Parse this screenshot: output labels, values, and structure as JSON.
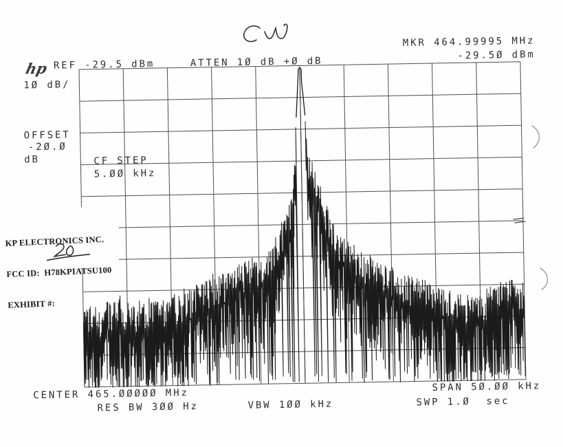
{
  "annotations": {
    "handwritten_title": "CW",
    "stamp": {
      "line1": "KP ELECTRONICS INC.",
      "line2": "FCC ID:  H78KPIATSU100",
      "line3_label": "EXHIBIT #:",
      "exhibit_value_handwritten": "20"
    }
  },
  "analyzer": {
    "logo": "hp",
    "ref": "REF -29.5 dBm",
    "atten": "ATTEN 10 dB +0 dB",
    "scale": "10 dB/",
    "offset_line1": "OFFSET",
    "offset_line2": "-20.0",
    "offset_line3": "dB",
    "cf_step_line1": "CF STEP",
    "cf_step_line2": "5.00 kHz",
    "mkr_line1": "MKR 464.99995 MHz",
    "mkr_line2": "-29.50 dBm",
    "center": "CENTER 465.00000 MHz",
    "res_bw": "RES BW 300 Hz",
    "vbw": "VBW 100 kHz",
    "span": "SPAN 50.00 kHz",
    "sweep": "SWP 1.0  sec"
  },
  "chart_data": {
    "type": "line",
    "title": "CW carrier spectrum (handwritten: CW)",
    "x": {
      "center_MHz": 465.0,
      "span_kHz": 50.0,
      "kHz_per_div": 5.0
    },
    "y": {
      "ref_dBm": -29.5,
      "dB_per_div": 10,
      "top_dBm": -29.5,
      "bottom_dBm": -129.5
    },
    "divisions": {
      "x": 10,
      "y": 10
    },
    "grid": "on",
    "marker": {
      "MHz": 464.99995,
      "dBm": -29.5
    },
    "peak": {
      "offset_kHz": 0.0,
      "dBm": -29.5
    },
    "settings": {
      "ref_dBm": -29.5,
      "atten_dB": 10,
      "atten_trim_dB": 0,
      "scale_dB_per_div": 10,
      "offset_dB": -20.0,
      "cf_step_kHz": 5.0,
      "res_bw_Hz": 300,
      "vbw_kHz": 100,
      "sweep_s": 1.0
    },
    "noise_envelope_top_dBm": [
      [
        -25,
        -103
      ],
      [
        -23,
        -105
      ],
      [
        -21,
        -102
      ],
      [
        -19,
        -104
      ],
      [
        -17,
        -103
      ],
      [
        -15,
        -102
      ],
      [
        -13,
        -100
      ],
      [
        -11,
        -97
      ],
      [
        -9.5,
        -95
      ],
      [
        -8,
        -94
      ],
      [
        -6.5,
        -92
      ],
      [
        -5,
        -90
      ],
      [
        -4,
        -87
      ],
      [
        -3,
        -83
      ],
      [
        -2.2,
        -79
      ],
      [
        -1.6,
        -75
      ],
      [
        -1.1,
        -70
      ],
      [
        -0.8,
        -62
      ],
      [
        -0.55,
        -48
      ],
      [
        -0.3,
        -37
      ],
      [
        0,
        -29.5
      ],
      [
        0.3,
        -38
      ],
      [
        0.55,
        -47
      ],
      [
        0.8,
        -56
      ],
      [
        1.1,
        -60
      ],
      [
        1.5,
        -63
      ],
      [
        2,
        -68
      ],
      [
        2.6,
        -73
      ],
      [
        3.3,
        -78
      ],
      [
        4.2,
        -83
      ],
      [
        5.5,
        -87
      ],
      [
        7,
        -90
      ],
      [
        8.5,
        -92
      ],
      [
        10,
        -94
      ],
      [
        12,
        -97
      ],
      [
        14,
        -99
      ],
      [
        16,
        -101
      ],
      [
        18,
        -104
      ],
      [
        20,
        -103
      ],
      [
        22,
        -100
      ],
      [
        23.5,
        -98
      ],
      [
        25,
        -99
      ]
    ],
    "noise_typical_depth_dB": 20,
    "noise_spike_floor_dBm": -126,
    "seed": 20
  }
}
